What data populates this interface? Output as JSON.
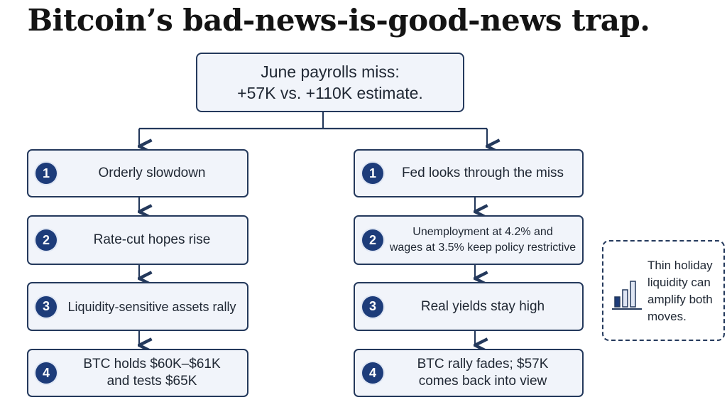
{
  "title": "Bitcoin’s bad-news-is-good-news trap.",
  "trigger": {
    "line1": "June payrolls miss:",
    "line2": "+57K vs. +110K estimate."
  },
  "left_path": [
    {
      "num": "1",
      "lines": [
        "Orderly slowdown"
      ]
    },
    {
      "num": "2",
      "lines": [
        "Rate-cut hopes rise"
      ]
    },
    {
      "num": "3",
      "lines": [
        "Liquidity-sensitive assets rally"
      ]
    },
    {
      "num": "4",
      "lines": [
        "BTC holds $60K–$61K",
        "and tests $65K"
      ]
    }
  ],
  "right_path": [
    {
      "num": "1",
      "lines": [
        "Fed looks through the miss"
      ]
    },
    {
      "num": "2",
      "lines": [
        "Unemployment at 4.2% and",
        "wages at 3.5% keep policy restrictive"
      ]
    },
    {
      "num": "3",
      "lines": [
        "Real yields stay high"
      ]
    },
    {
      "num": "4",
      "lines": [
        "BTC rally fades; $57K",
        "comes back into view"
      ]
    }
  ],
  "note": {
    "text": "Thin holiday liquidity can amplify both moves.",
    "icon": "bar-chart-icon"
  },
  "colors": {
    "border": "#24395c",
    "box_fill": "#f1f4fa",
    "number_badge": "#1d3c7a"
  }
}
